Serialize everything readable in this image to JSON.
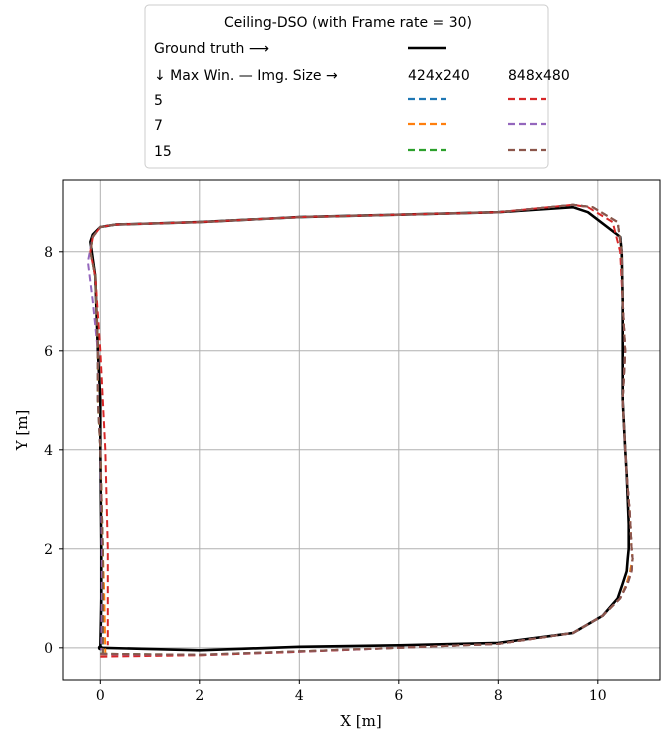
{
  "chart_data": {
    "type": "line",
    "title": "",
    "xlabel": "X [m]",
    "ylabel": "Y [m]",
    "xlim": [
      -0.75,
      11.25
    ],
    "ylim": [
      -0.65,
      9.45
    ],
    "xticks": [
      0,
      2,
      4,
      6,
      8,
      10
    ],
    "yticks": [
      0,
      2,
      4,
      6,
      8
    ],
    "grid": true,
    "legend": {
      "title": "Ceiling-DSO (with Frame rate = 30)",
      "ground_truth_label": "Ground truth ⟶",
      "header_label": "↓ Max Win. — Img. Size →",
      "column_headers": [
        "424x240",
        "848x480"
      ],
      "row_labels": [
        "5",
        "7",
        "15"
      ],
      "placement": "above plot"
    },
    "series": [
      {
        "name": "Ground truth",
        "color": "#000000",
        "style": "solid",
        "x": [
          0,
          2,
          4,
          6,
          8,
          9.5,
          10.1,
          10.4,
          10.5,
          10.58,
          10.6,
          10.62,
          10.62,
          10.6,
          10.58,
          10.55,
          10.5,
          10.5,
          10.5,
          10.48,
          10.45,
          9.8,
          9.5,
          8,
          6,
          4,
          2,
          0.3,
          0,
          -0.15,
          -0.2,
          -0.1,
          -0.05,
          0,
          0,
          0.02,
          0.02,
          0
        ],
        "y": [
          0,
          -0.05,
          0.02,
          0.05,
          0.1,
          0.3,
          0.65,
          1.0,
          1.3,
          1.55,
          1.8,
          2.0,
          2.5,
          3.0,
          3.5,
          4.0,
          5.0,
          6.0,
          7.0,
          8.0,
          8.3,
          8.8,
          8.9,
          8.8,
          8.75,
          8.7,
          8.6,
          8.55,
          8.5,
          8.35,
          8.2,
          7.5,
          6.0,
          5.0,
          4.0,
          2.0,
          1.0,
          0
        ]
      },
      {
        "name": "5 / 424x240",
        "color": "#1f77b4",
        "style": "dashed",
        "x": [
          0,
          2,
          4,
          6,
          8,
          9.5,
          10.1,
          10.45,
          10.58,
          10.65,
          10.7,
          10.68,
          10.65,
          10.62,
          10.58,
          10.55,
          10.5,
          10.55,
          10.5,
          10.48,
          10.4,
          9.9,
          9.5,
          8,
          6,
          4,
          2,
          0.3,
          0,
          -0.15,
          -0.2,
          -0.1,
          -0.05,
          -0.05,
          0,
          0.05,
          0.05,
          0.05
        ],
        "y": [
          -0.12,
          -0.15,
          -0.08,
          0.0,
          0.08,
          0.3,
          0.65,
          1.0,
          1.3,
          1.55,
          1.8,
          2.0,
          2.6,
          3.0,
          3.5,
          4.0,
          5.0,
          6.0,
          7.0,
          8.0,
          8.6,
          8.9,
          8.95,
          8.8,
          8.75,
          8.7,
          8.6,
          8.55,
          8.5,
          8.3,
          8.0,
          7.5,
          6.0,
          5.0,
          4.0,
          2.0,
          1.0,
          -0.1
        ]
      },
      {
        "name": "7 / 424x240",
        "color": "#ff7f0e",
        "style": "dashed",
        "x": [
          0,
          2,
          4,
          6,
          8,
          9.5,
          10.1,
          10.45,
          10.58,
          10.65,
          10.7,
          10.68,
          10.65,
          10.62,
          10.58,
          10.55,
          10.5,
          10.55,
          10.5,
          10.48,
          10.4,
          9.9,
          9.5,
          8,
          6,
          4,
          2,
          0.3,
          0,
          -0.15,
          -0.2,
          -0.1,
          -0.05,
          -0.05,
          0,
          0.05,
          0.08,
          0.1
        ],
        "y": [
          -0.14,
          -0.15,
          -0.07,
          0.0,
          0.08,
          0.3,
          0.65,
          1.0,
          1.3,
          1.55,
          1.8,
          2.0,
          2.6,
          3.0,
          3.5,
          4.0,
          5.0,
          6.0,
          7.0,
          8.0,
          8.6,
          8.9,
          8.95,
          8.8,
          8.75,
          8.7,
          8.6,
          8.55,
          8.5,
          8.3,
          8.0,
          7.5,
          6.0,
          5.0,
          4.0,
          2.0,
          1.0,
          -0.1
        ]
      },
      {
        "name": "15 / 424x240",
        "color": "#2ca02c",
        "style": "dashed",
        "x": [
          0,
          2,
          4,
          6,
          8,
          9.5,
          10.1,
          10.45,
          10.6,
          10.68,
          10.7,
          10.68,
          10.65,
          10.62,
          10.58,
          10.55,
          10.5,
          10.55,
          10.5,
          10.48,
          10.4,
          9.9,
          9.5,
          8,
          6,
          4,
          2,
          0.3,
          0,
          -0.15,
          -0.2,
          -0.1,
          -0.05,
          -0.05,
          0,
          0.05,
          0.05,
          0.05
        ],
        "y": [
          -0.12,
          -0.14,
          -0.07,
          0.0,
          0.08,
          0.3,
          0.65,
          1.0,
          1.3,
          1.55,
          1.8,
          2.0,
          2.6,
          3.0,
          3.5,
          4.0,
          5.0,
          6.0,
          7.0,
          8.0,
          8.6,
          8.9,
          8.95,
          8.8,
          8.75,
          8.7,
          8.6,
          8.55,
          8.5,
          8.3,
          8.0,
          7.5,
          6.0,
          5.0,
          4.0,
          2.0,
          1.0,
          -0.1
        ]
      },
      {
        "name": "5 / 848x480",
        "color": "#d62728",
        "style": "dashed",
        "x": [
          0,
          2,
          4,
          6,
          8,
          9.5,
          10.1,
          10.45,
          10.6,
          10.68,
          10.7,
          10.68,
          10.65,
          10.62,
          10.58,
          10.55,
          10.5,
          10.55,
          10.5,
          10.45,
          10.3,
          9.8,
          9.5,
          8,
          6,
          4,
          2,
          0.3,
          0,
          -0.15,
          -0.2,
          -0.1,
          0.0,
          0.05,
          0.1,
          0.15,
          0.15,
          0.15
        ],
        "y": [
          -0.18,
          -0.15,
          -0.08,
          0.0,
          0.08,
          0.3,
          0.65,
          1.0,
          1.3,
          1.55,
          1.8,
          2.0,
          2.6,
          3.0,
          3.5,
          4.0,
          5.0,
          6.0,
          7.0,
          8.0,
          8.6,
          8.9,
          8.95,
          8.8,
          8.75,
          8.7,
          8.6,
          8.55,
          8.5,
          8.3,
          8.0,
          7.5,
          6.0,
          5.0,
          4.0,
          2.0,
          1.0,
          0.05
        ]
      },
      {
        "name": "7 / 848x480",
        "color": "#9467bd",
        "style": "dashed",
        "x": [
          0,
          2,
          4,
          6,
          8,
          9.5,
          10.1,
          10.45,
          10.6,
          10.68,
          10.7,
          10.68,
          10.65,
          10.62,
          10.58,
          10.55,
          10.5,
          10.55,
          10.5,
          10.48,
          10.4,
          9.9,
          9.5,
          8,
          6,
          4,
          2,
          0.3,
          0,
          -0.15,
          -0.25,
          -0.15,
          -0.05,
          -0.05,
          0,
          0.03,
          0.03,
          0.02
        ],
        "y": [
          -0.13,
          -0.14,
          -0.07,
          0.0,
          0.08,
          0.3,
          0.65,
          1.0,
          1.3,
          1.55,
          1.8,
          2.0,
          2.6,
          3.0,
          3.5,
          4.0,
          5.0,
          6.0,
          7.0,
          8.0,
          8.6,
          8.9,
          8.95,
          8.8,
          8.75,
          8.7,
          8.6,
          8.55,
          8.5,
          8.3,
          7.8,
          7.0,
          6.0,
          5.0,
          4.0,
          2.0,
          1.0,
          -0.05
        ]
      },
      {
        "name": "15 / 848x480",
        "color": "#8c564b",
        "style": "dashed",
        "x": [
          0,
          2,
          4,
          6,
          8,
          9.5,
          10.1,
          10.45,
          10.6,
          10.68,
          10.7,
          10.68,
          10.65,
          10.62,
          10.58,
          10.55,
          10.5,
          10.55,
          10.5,
          10.48,
          10.4,
          9.9,
          9.5,
          8,
          6,
          4,
          2,
          0.3,
          0,
          -0.15,
          -0.2,
          -0.1,
          -0.05,
          -0.05,
          0,
          0.05,
          0.05,
          0.05
        ],
        "y": [
          -0.12,
          -0.14,
          -0.07,
          0.0,
          0.08,
          0.3,
          0.65,
          1.0,
          1.3,
          1.55,
          1.8,
          2.0,
          2.6,
          3.0,
          3.5,
          4.0,
          5.0,
          6.0,
          7.0,
          8.0,
          8.6,
          8.9,
          8.95,
          8.8,
          8.75,
          8.7,
          8.6,
          8.55,
          8.5,
          8.3,
          8.0,
          7.5,
          6.0,
          5.0,
          4.0,
          2.0,
          1.0,
          -0.1
        ]
      }
    ]
  }
}
